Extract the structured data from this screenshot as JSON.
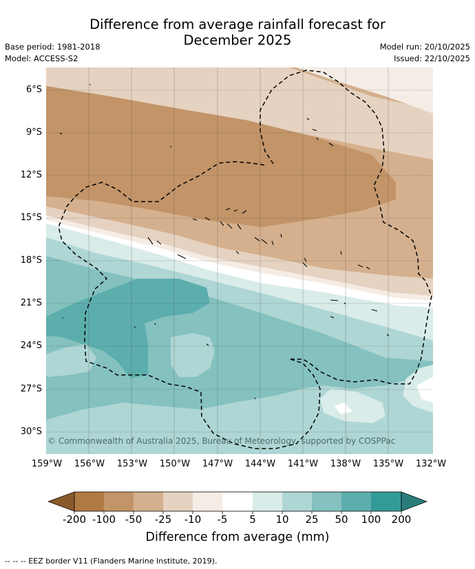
{
  "title_line1": "Difference from average rainfall forecast for",
  "title_line2": "December 2025",
  "base_period": "Base period: 1981-2018",
  "model": "Model: ACCESS-S2",
  "model_run": "Model run: 20/10/2025",
  "issued": "Issued: 22/10/2025",
  "copyright": "© Commonwealth of Australia 2025, Bureau of Meteorology, supported by COSPPac",
  "lat_labels": [
    "6°S",
    "9°S",
    "12°S",
    "15°S",
    "18°S",
    "21°S",
    "24°S",
    "27°S",
    "30°S"
  ],
  "lon_labels": [
    "159°W",
    "156°W",
    "153°W",
    "150°W",
    "147°W",
    "144°W",
    "141°W",
    "138°W",
    "135°W",
    "132°W"
  ],
  "colorbar": {
    "title": "Difference from average (mm)",
    "labels": [
      "-200",
      "-100",
      "-50",
      "-25",
      "-10",
      "-5",
      "5",
      "10",
      "25",
      "50",
      "100",
      "200"
    ],
    "colors": [
      "#8a5a2b",
      "#b07a45",
      "#c29468",
      "#d4b08e",
      "#e6d2c0",
      "#f5ece5",
      "#ffffff",
      "#d9ecea",
      "#aed6d4",
      "#84c1bf",
      "#5caead",
      "#349a98",
      "#2a7d7b"
    ]
  },
  "legend_text": "--  --  -- EEZ border V11 (Flanders Marine Institute, 2019)."
}
